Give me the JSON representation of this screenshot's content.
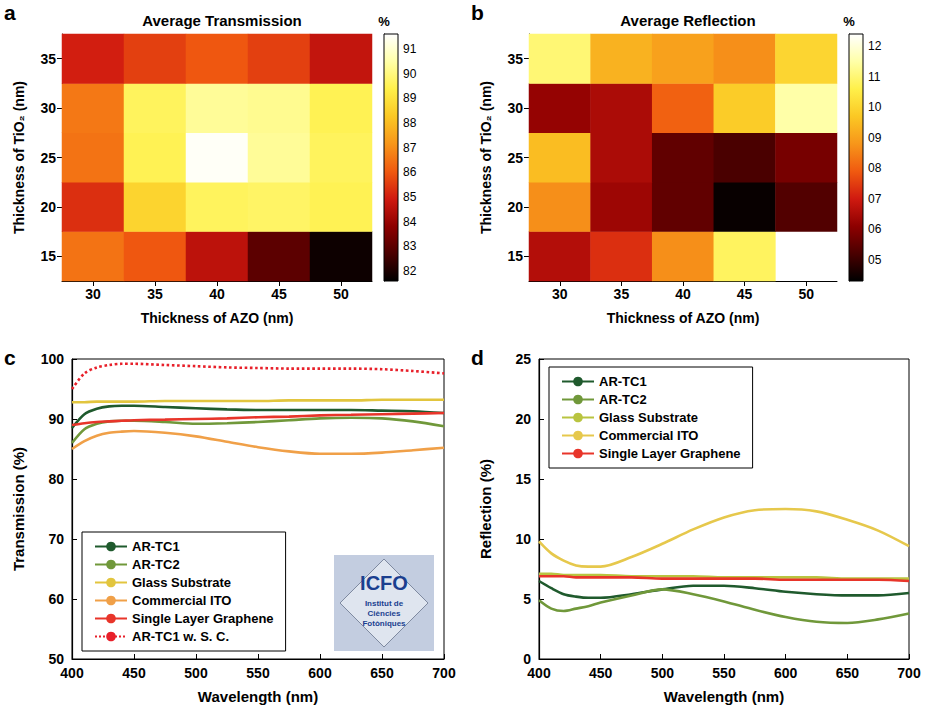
{
  "chart_data": [
    {
      "type": "heatmap",
      "panel": "a",
      "title": "Average Transmission",
      "x_label": "Thickness of AZO (nm)",
      "y_label": "Thickness of TiO₂ (nm)",
      "x": [
        30,
        35,
        40,
        45,
        50
      ],
      "y": [
        15,
        20,
        25,
        30,
        35
      ],
      "cells": [
        [
          86.5,
          86.0,
          84.6,
          83.0,
          81.8
        ],
        [
          85.3,
          88.6,
          89.6,
          89.7,
          89.5
        ],
        [
          86.5,
          89.5,
          91.5,
          90.3,
          89.6
        ],
        [
          86.6,
          89.6,
          90.3,
          90.2,
          89.5
        ],
        [
          85.0,
          85.6,
          86.0,
          85.6,
          84.7
        ]
      ],
      "colorbar": {
        "label": "%",
        "range": [
          81.6,
          91.6
        ],
        "ticks": [
          82,
          83,
          84,
          85,
          86,
          87,
          88,
          89,
          90,
          91
        ]
      }
    },
    {
      "type": "heatmap",
      "panel": "b",
      "title": "Average Reflection",
      "x_label": "Thickness of AZO (nm)",
      "y_label": "Thickness of TiO₂ (nm)",
      "x": [
        30,
        35,
        40,
        45,
        50
      ],
      "y": [
        15,
        20,
        25,
        30,
        35
      ],
      "cells": [
        [
          6.6,
          7.3,
          8.7,
          10.8,
          null
        ],
        [
          8.7,
          6.3,
          5.5,
          4.4,
          5.3
        ],
        [
          9.5,
          6.5,
          5.5,
          5.2,
          5.8
        ],
        [
          6.2,
          6.5,
          8.0,
          9.8,
          11.5
        ],
        [
          11.0,
          9.3,
          9.0,
          8.7,
          10.0
        ]
      ],
      "colorbar": {
        "label": "%",
        "range": [
          4.3,
          12.4
        ],
        "ticks": [
          {
            "value": 5,
            "label": "05"
          },
          {
            "value": 6,
            "label": "06"
          },
          {
            "value": 7,
            "label": "07"
          },
          {
            "value": 8,
            "label": "08"
          },
          {
            "value": 9,
            "label": "09"
          },
          10,
          11,
          12
        ]
      }
    },
    {
      "type": "line",
      "panel": "c",
      "x_label": "Wavelength (nm)",
      "y_label": "Transmission (%)",
      "grid": false,
      "legend": "lower left",
      "inset": {
        "title": "ICFO",
        "text": "Institut de Ciències Fotòniques"
      },
      "x": [
        400,
        410,
        420,
        430,
        440,
        450,
        475,
        500,
        525,
        550,
        575,
        600,
        625,
        650,
        675,
        700
      ],
      "xlim": [
        400,
        700
      ],
      "xticks": [
        400,
        450,
        500,
        550,
        600,
        650,
        700
      ],
      "ylim": [
        50,
        100
      ],
      "yticks": [
        50,
        60,
        70,
        80,
        90,
        100
      ],
      "series": [
        {
          "name": "AR-TC1",
          "color": "#1f5a2d",
          "line_style": "solid",
          "values": [
            88.5,
            90.8,
            91.7,
            92.1,
            92.2,
            92.2,
            92.0,
            91.8,
            91.6,
            91.5,
            91.5,
            91.5,
            91.5,
            91.4,
            91.3,
            91.0
          ]
        },
        {
          "name": "AR-TC2",
          "color": "#70983a",
          "line_style": "solid",
          "values": [
            86.0,
            88.3,
            89.2,
            89.6,
            89.7,
            89.7,
            89.5,
            89.2,
            89.3,
            89.5,
            89.8,
            90.1,
            90.2,
            90.1,
            89.6,
            88.8
          ]
        },
        {
          "name": "Glass Substrate",
          "color": "#e2c53e",
          "line_style": "solid",
          "values": [
            92.8,
            92.8,
            92.9,
            92.9,
            92.9,
            92.9,
            93.0,
            93.0,
            93.0,
            93.0,
            93.1,
            93.1,
            93.1,
            93.2,
            93.2,
            93.2
          ]
        },
        {
          "name": "Commercial ITO",
          "color": "#f0a048",
          "line_style": "solid",
          "values": [
            85.0,
            86.3,
            87.2,
            87.7,
            87.9,
            88.0,
            87.7,
            87.1,
            86.2,
            85.3,
            84.6,
            84.2,
            84.2,
            84.4,
            84.8,
            85.2
          ]
        },
        {
          "name": "Single Layer Graphene",
          "color": "#e8352a",
          "line_style": "solid",
          "values": [
            89.0,
            89.3,
            89.5,
            89.6,
            89.7,
            89.8,
            89.9,
            90.0,
            90.1,
            90.3,
            90.4,
            90.6,
            90.7,
            90.8,
            90.9,
            91.0
          ]
        },
        {
          "name": "AR-TC1 w. S. C.",
          "color": "#e8202a",
          "line_style": "dotted",
          "values": [
            95.0,
            97.6,
            98.6,
            99.0,
            99.2,
            99.2,
            99.0,
            98.8,
            98.6,
            98.5,
            98.4,
            98.4,
            98.4,
            98.3,
            98.0,
            97.6
          ]
        }
      ]
    },
    {
      "type": "line",
      "panel": "d",
      "x_label": "Wavelength (nm)",
      "y_label": "Reflection (%)",
      "grid": false,
      "legend": "upper left",
      "x": [
        400,
        410,
        420,
        430,
        440,
        450,
        475,
        500,
        525,
        550,
        575,
        600,
        625,
        650,
        675,
        700
      ],
      "xlim": [
        400,
        700
      ],
      "xticks": [
        400,
        450,
        500,
        550,
        600,
        650,
        700
      ],
      "ylim": [
        0,
        25
      ],
      "yticks": [
        0,
        5,
        10,
        15,
        20,
        25
      ],
      "series": [
        {
          "name": "AR-TC1",
          "color": "#1f5a2d",
          "line_style": "solid",
          "values": [
            6.5,
            5.9,
            5.4,
            5.2,
            5.1,
            5.1,
            5.4,
            5.8,
            6.1,
            6.1,
            5.9,
            5.6,
            5.4,
            5.3,
            5.3,
            5.5
          ]
        },
        {
          "name": "AR-TC2",
          "color": "#70983a",
          "line_style": "solid",
          "values": [
            4.9,
            4.2,
            4.0,
            4.2,
            4.4,
            4.7,
            5.3,
            5.8,
            5.4,
            4.8,
            4.1,
            3.5,
            3.1,
            3.0,
            3.3,
            3.8
          ]
        },
        {
          "name": "Glass Substrate",
          "color": "#b9c440",
          "line_style": "solid",
          "values": [
            7.1,
            7.1,
            7.0,
            7.0,
            7.0,
            7.0,
            6.9,
            6.9,
            6.9,
            6.8,
            6.8,
            6.8,
            6.8,
            6.7,
            6.7,
            6.7
          ]
        },
        {
          "name": "Commercial ITO",
          "color": "#e6c84c",
          "line_style": "solid",
          "values": [
            9.8,
            8.8,
            8.2,
            7.8,
            7.7,
            7.7,
            8.5,
            9.6,
            10.8,
            11.8,
            12.4,
            12.5,
            12.3,
            11.6,
            10.7,
            9.4
          ]
        },
        {
          "name": "Single Layer Graphene",
          "color": "#e8352a",
          "line_style": "solid",
          "values": [
            6.9,
            6.9,
            6.9,
            6.8,
            6.8,
            6.8,
            6.8,
            6.7,
            6.7,
            6.7,
            6.7,
            6.6,
            6.6,
            6.6,
            6.6,
            6.5
          ]
        }
      ]
    }
  ]
}
